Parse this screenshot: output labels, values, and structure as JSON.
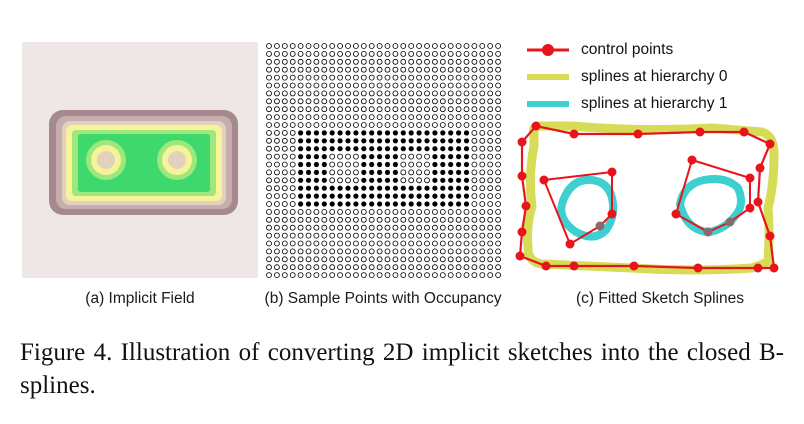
{
  "panels": {
    "a": {
      "caption": "(a) Implicit Field"
    },
    "b": {
      "caption": "(b) Sample Points with Occupancy"
    },
    "c": {
      "caption": "(c) Fitted Sketch Splines"
    }
  },
  "legend": [
    {
      "label": "control points",
      "color": "#e8141c",
      "style": "line-marker"
    },
    {
      "label": "splines at hierarchy 0",
      "color": "#d6dc55",
      "style": "thick-line"
    },
    {
      "label": "splines at hierarchy 1",
      "color": "#3ecfd0",
      "style": "thick-line"
    }
  ],
  "figure_caption": "Figure 4.  Illustration of converting 2D implicit sketches into the closed B-splines.",
  "colors": {
    "field_background": "#efe6e6",
    "field_contours": [
      "#a58a8d",
      "#c6aeb0",
      "#e2d2bd",
      "#f6f39b",
      "#9de87c",
      "#3fd86c"
    ],
    "point_filled": "#000000",
    "point_empty": "#ffffff"
  }
}
